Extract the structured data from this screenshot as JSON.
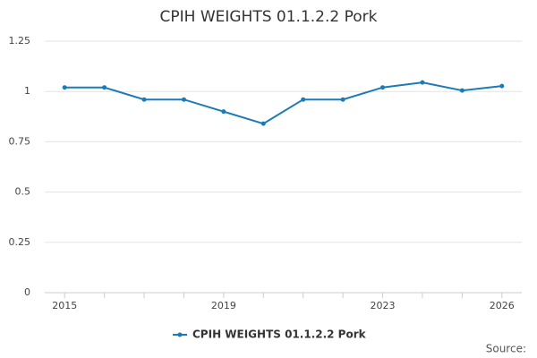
{
  "chart_data": {
    "type": "line",
    "title": "CPIH WEIGHTS 01.1.2.2 Pork",
    "x": [
      2015,
      2016,
      2017,
      2018,
      2019,
      2020,
      2021,
      2022,
      2023,
      2024,
      2025,
      2026
    ],
    "series": [
      {
        "name": "CPIH WEIGHTS 01.1.2.2 Pork",
        "color": "#1a7bb8",
        "values": [
          1.02,
          1.02,
          0.96,
          0.96,
          0.9,
          0.84,
          0.96,
          0.96,
          1.02,
          1.045,
          1.005,
          1.027
        ]
      }
    ],
    "xlim": [
      2014.5,
      2026.5
    ],
    "xticks": [
      2015,
      2019,
      2023,
      2026
    ],
    "ylim": [
      0,
      1.25
    ],
    "yticks": [
      0,
      0.25,
      0.5,
      0.75,
      1,
      1.25
    ],
    "grid": true,
    "legend": "bottom",
    "source": "Source:"
  }
}
